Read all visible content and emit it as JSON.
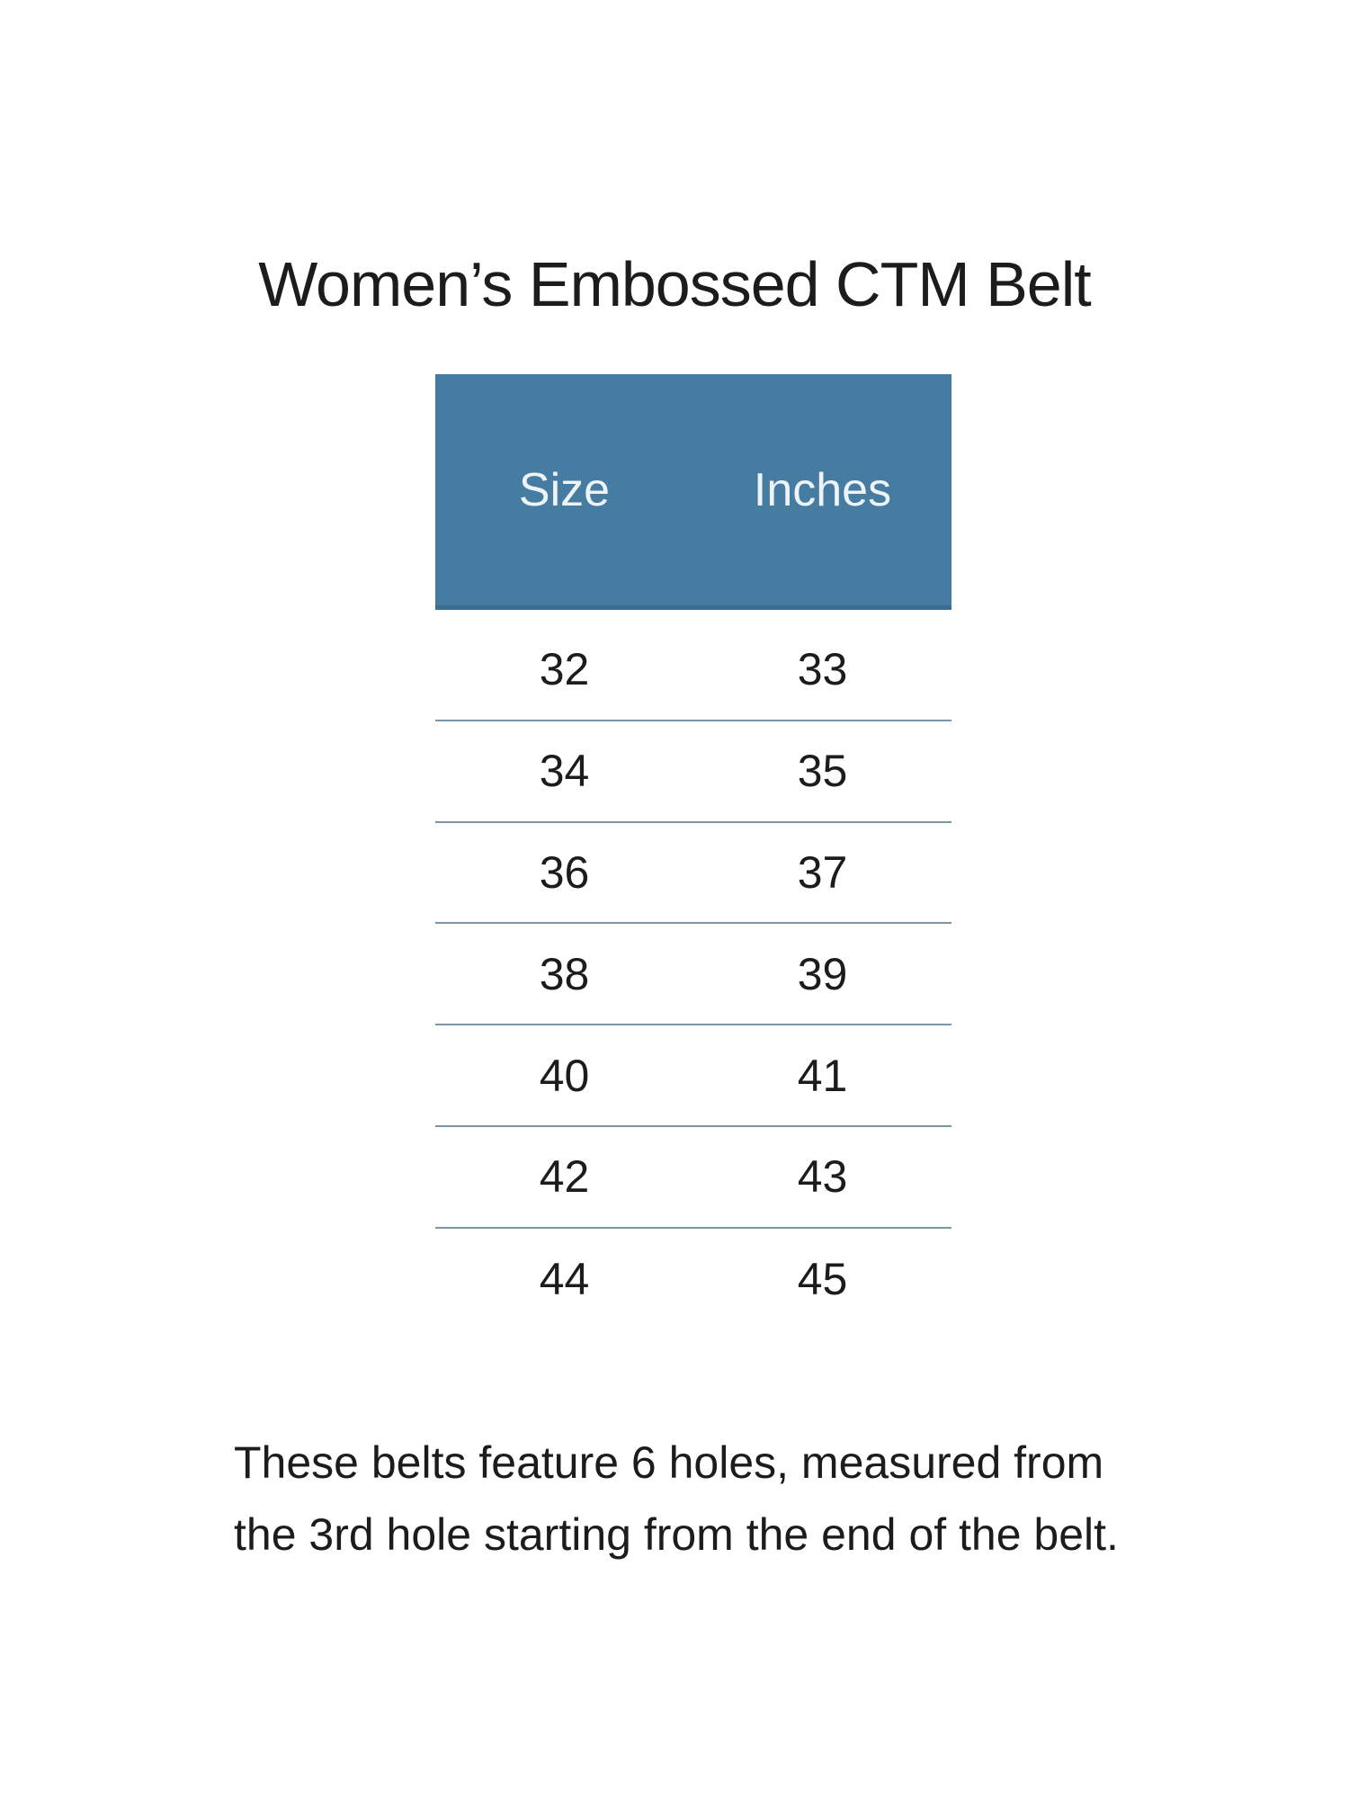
{
  "colors": {
    "page_bg": "#ffffff",
    "header_bg": "#477ca2",
    "header_border": "#3c6e93",
    "header_text": "#edf4f8",
    "row_divider": "#7a96a8",
    "text": "#1c1c1c"
  },
  "title": "Women’s Embossed CTM Belt",
  "table": {
    "header": {
      "size_label": "Size",
      "inches_label": "Inches"
    },
    "rows": [
      {
        "size": "32",
        "inches": "33"
      },
      {
        "size": "34",
        "inches": "35"
      },
      {
        "size": "36",
        "inches": "37"
      },
      {
        "size": "38",
        "inches": "39"
      },
      {
        "size": "40",
        "inches": "41"
      },
      {
        "size": "42",
        "inches": "43"
      },
      {
        "size": "44",
        "inches": "45"
      }
    ]
  },
  "note": {
    "line1": "These belts feature 6 holes, measured from",
    "line2": "the 3rd hole starting from the end of the belt."
  },
  "chart_data": {
    "type": "table",
    "title": "Women’s Embossed CTM Belt",
    "columns": [
      "Size",
      "Inches"
    ],
    "rows": [
      [
        32,
        33
      ],
      [
        34,
        35
      ],
      [
        36,
        37
      ],
      [
        38,
        39
      ],
      [
        40,
        41
      ],
      [
        42,
        43
      ],
      [
        44,
        45
      ]
    ],
    "note": "These belts feature 6 holes, measured from the 3rd hole starting from the end of the belt."
  }
}
